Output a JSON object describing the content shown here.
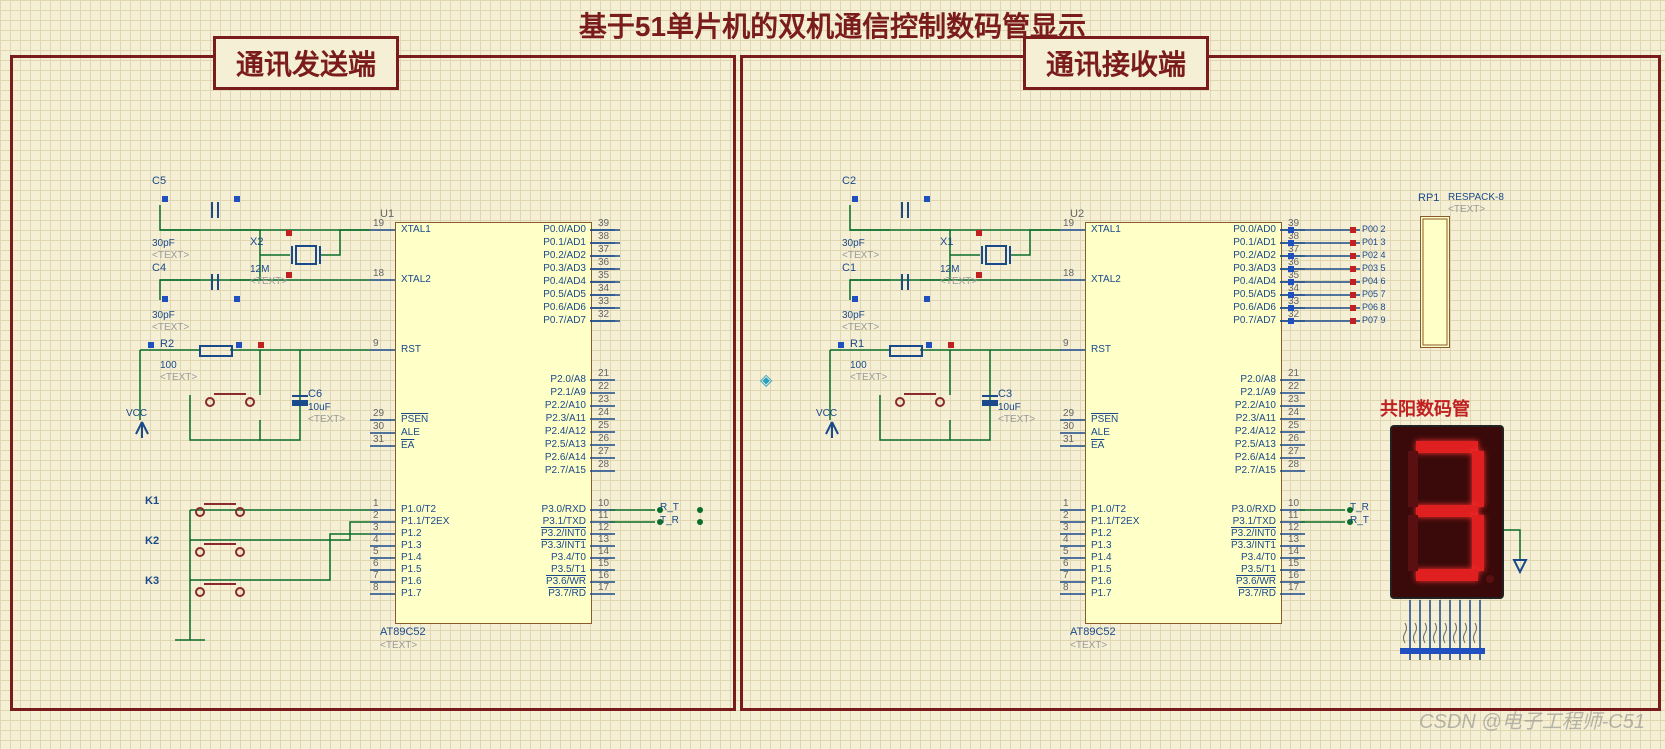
{
  "main_title": "基于51单片机的双机通信控制数码管显示",
  "panel_left": {
    "title": "通讯发送端",
    "chip": {
      "ref": "U1",
      "part": "AT89C52",
      "text": "<TEXT>",
      "left_pins": [
        {
          "num": "19",
          "label": "XTAL1"
        },
        {
          "num": "18",
          "label": "XTAL2"
        },
        {
          "num": "9",
          "label": "RST"
        },
        {
          "num": "29",
          "label": "PSEN",
          "ol": true
        },
        {
          "num": "30",
          "label": "ALE"
        },
        {
          "num": "31",
          "label": "EA",
          "ol": true
        },
        {
          "num": "1",
          "label": "P1.0/T2"
        },
        {
          "num": "2",
          "label": "P1.1/T2EX"
        },
        {
          "num": "3",
          "label": "P1.2"
        },
        {
          "num": "4",
          "label": "P1.3"
        },
        {
          "num": "5",
          "label": "P1.4"
        },
        {
          "num": "6",
          "label": "P1.5"
        },
        {
          "num": "7",
          "label": "P1.6"
        },
        {
          "num": "8",
          "label": "P1.7"
        }
      ],
      "right_pins": [
        {
          "num": "39",
          "label": "P0.0/AD0"
        },
        {
          "num": "38",
          "label": "P0.1/AD1"
        },
        {
          "num": "37",
          "label": "P0.2/AD2"
        },
        {
          "num": "36",
          "label": "P0.3/AD3"
        },
        {
          "num": "35",
          "label": "P0.4/AD4"
        },
        {
          "num": "34",
          "label": "P0.5/AD5"
        },
        {
          "num": "33",
          "label": "P0.6/AD6"
        },
        {
          "num": "32",
          "label": "P0.7/AD7"
        },
        {
          "num": "21",
          "label": "P2.0/A8"
        },
        {
          "num": "22",
          "label": "P2.1/A9"
        },
        {
          "num": "23",
          "label": "P2.2/A10"
        },
        {
          "num": "24",
          "label": "P2.3/A11"
        },
        {
          "num": "25",
          "label": "P2.4/A12"
        },
        {
          "num": "26",
          "label": "P2.5/A13"
        },
        {
          "num": "27",
          "label": "P2.6/A14"
        },
        {
          "num": "28",
          "label": "P2.7/A15"
        },
        {
          "num": "10",
          "label": "P3.0/RXD"
        },
        {
          "num": "11",
          "label": "P3.1/TXD"
        },
        {
          "num": "12",
          "label": "P3.2/INT0",
          "ol": true
        },
        {
          "num": "13",
          "label": "P3.3/INT1",
          "ol": true
        },
        {
          "num": "14",
          "label": "P3.4/T0"
        },
        {
          "num": "15",
          "label": "P3.5/T1"
        },
        {
          "num": "16",
          "label": "P3.6/WR",
          "ol": true
        },
        {
          "num": "17",
          "label": "P3.7/RD",
          "ol": true
        }
      ]
    },
    "components": {
      "C5": {
        "ref": "C5",
        "val": "30pF",
        "text": "<TEXT>"
      },
      "C4": {
        "ref": "C4",
        "val": "30pF",
        "text": "<TEXT>"
      },
      "X2": {
        "ref": "X2",
        "val": "12M",
        "text": "<TEXT>"
      },
      "R2": {
        "ref": "R2",
        "val": "100",
        "text": "<TEXT>"
      },
      "C6": {
        "ref": "C6",
        "val": "10uF",
        "text": "<TEXT>"
      },
      "VCC": "VCC",
      "K1": "K1",
      "K2": "K2",
      "K3": "K3"
    },
    "nets": {
      "rt": "R_T",
      "tr": "T_R"
    }
  },
  "panel_right": {
    "title": "通讯接收端",
    "chip": {
      "ref": "U2",
      "part": "AT89C52",
      "text": "<TEXT>",
      "left_pins": [
        {
          "num": "19",
          "label": "XTAL1"
        },
        {
          "num": "18",
          "label": "XTAL2"
        },
        {
          "num": "9",
          "label": "RST"
        },
        {
          "num": "29",
          "label": "PSEN",
          "ol": true
        },
        {
          "num": "30",
          "label": "ALE"
        },
        {
          "num": "31",
          "label": "EA",
          "ol": true
        },
        {
          "num": "1",
          "label": "P1.0/T2"
        },
        {
          "num": "2",
          "label": "P1.1/T2EX"
        },
        {
          "num": "3",
          "label": "P1.2"
        },
        {
          "num": "4",
          "label": "P1.3"
        },
        {
          "num": "5",
          "label": "P1.4"
        },
        {
          "num": "6",
          "label": "P1.5"
        },
        {
          "num": "7",
          "label": "P1.6"
        },
        {
          "num": "8",
          "label": "P1.7"
        }
      ],
      "right_pins": [
        {
          "num": "39",
          "label": "P0.0/AD0",
          "net": "P00",
          "idx": "2"
        },
        {
          "num": "38",
          "label": "P0.1/AD1",
          "net": "P01",
          "idx": "3"
        },
        {
          "num": "37",
          "label": "P0.2/AD2",
          "net": "P02",
          "idx": "4"
        },
        {
          "num": "36",
          "label": "P0.3/AD3",
          "net": "P03",
          "idx": "5"
        },
        {
          "num": "35",
          "label": "P0.4/AD4",
          "net": "P04",
          "idx": "6"
        },
        {
          "num": "34",
          "label": "P0.5/AD5",
          "net": "P05",
          "idx": "7"
        },
        {
          "num": "33",
          "label": "P0.6/AD6",
          "net": "P06",
          "idx": "8"
        },
        {
          "num": "32",
          "label": "P0.7/AD7",
          "net": "P07",
          "idx": "9"
        },
        {
          "num": "21",
          "label": "P2.0/A8"
        },
        {
          "num": "22",
          "label": "P2.1/A9"
        },
        {
          "num": "23",
          "label": "P2.2/A10"
        },
        {
          "num": "24",
          "label": "P2.3/A11"
        },
        {
          "num": "25",
          "label": "P2.4/A12"
        },
        {
          "num": "26",
          "label": "P2.5/A13"
        },
        {
          "num": "27",
          "label": "P2.6/A14"
        },
        {
          "num": "28",
          "label": "P2.7/A15"
        },
        {
          "num": "10",
          "label": "P3.0/RXD"
        },
        {
          "num": "11",
          "label": "P3.1/TXD"
        },
        {
          "num": "12",
          "label": "P3.2/INT0",
          "ol": true
        },
        {
          "num": "13",
          "label": "P3.3/INT1",
          "ol": true
        },
        {
          "num": "14",
          "label": "P3.4/T0"
        },
        {
          "num": "15",
          "label": "P3.5/T1"
        },
        {
          "num": "16",
          "label": "P3.6/WR",
          "ol": true
        },
        {
          "num": "17",
          "label": "P3.7/RD",
          "ol": true
        }
      ]
    },
    "components": {
      "C2": {
        "ref": "C2",
        "val": "30pF",
        "text": "<TEXT>"
      },
      "C1": {
        "ref": "C1",
        "val": "30pF",
        "text": "<TEXT>"
      },
      "X1": {
        "ref": "X1",
        "val": "12M",
        "text": "<TEXT>"
      },
      "R1": {
        "ref": "R1",
        "val": "100",
        "text": "<TEXT>"
      },
      "C3": {
        "ref": "C3",
        "val": "10uF",
        "text": "<TEXT>"
      },
      "VCC": "VCC",
      "RP1": {
        "ref": "RP1",
        "val": "RESPACK-8",
        "text": "<TEXT>"
      }
    },
    "nets": {
      "tr": "T_R",
      "rt": "R_T"
    },
    "display_label": "共阳数码管",
    "display_digit": "3"
  },
  "watermark": "CSDN @电子工程师-C51",
  "colors": {
    "bg": "#f5efd6",
    "border": "#7a1c1c",
    "wire": "#0a6e2a",
    "chip_fill": "#ffffc8",
    "chip_border": "#8a5a2a",
    "label_blue": "#1a4a8a",
    "seg_on": "#e02020"
  }
}
